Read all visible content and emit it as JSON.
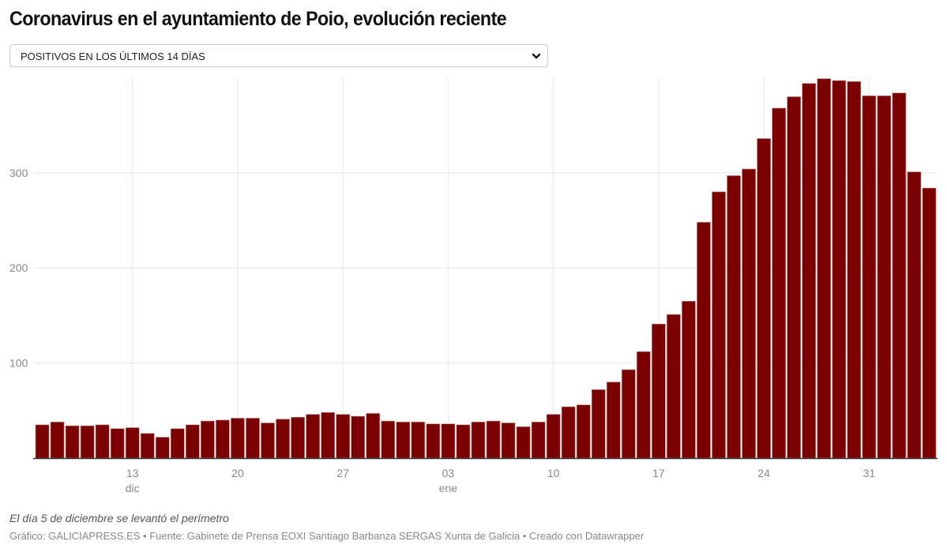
{
  "title": "Coronavirus en el ayuntamiento de Poio, evolución reciente",
  "dropdown": {
    "selected": "POSITIVOS EN LOS ÚLTIMOS 14 DÍAS",
    "icon": "chevron-down-icon"
  },
  "notes": "El día 5 de diciembre se levantó el perímetro",
  "source": "Gráfico: GALICIAPRESS.ES • Fuente: Gabinete de Prensa EOXI Santiago Barbanza SERGAS Xunta de Galicia • Creado con Datawrapper",
  "colors": {
    "bar": "#7b0000",
    "grid": "#e6e6e6",
    "axis": "#333333",
    "tick_text": "#888888"
  },
  "chart_data": {
    "type": "bar",
    "title": "Coronavirus en el ayuntamiento de Poio, evolución reciente",
    "series_name": "Positivos en los últimos 14 días",
    "x_start": "2020-12-07",
    "x_end": "2021-02-04",
    "xlabel": "",
    "ylabel": "",
    "ylim": [
      0,
      400
    ],
    "yticks": [
      100,
      200,
      300
    ],
    "grid": true,
    "xticks": [
      {
        "index": 6,
        "label": "13",
        "sublabel": "dic"
      },
      {
        "index": 13,
        "label": "20",
        "sublabel": ""
      },
      {
        "index": 20,
        "label": "27",
        "sublabel": ""
      },
      {
        "index": 27,
        "label": "03",
        "sublabel": "ene"
      },
      {
        "index": 34,
        "label": "10",
        "sublabel": ""
      },
      {
        "index": 41,
        "label": "17",
        "sublabel": ""
      },
      {
        "index": 48,
        "label": "24",
        "sublabel": ""
      },
      {
        "index": 55,
        "label": "31",
        "sublabel": ""
      }
    ],
    "values": [
      35,
      38,
      34,
      34,
      35,
      31,
      32,
      26,
      22,
      31,
      35,
      39,
      40,
      42,
      42,
      37,
      41,
      43,
      46,
      48,
      46,
      44,
      47,
      39,
      38,
      38,
      36,
      36,
      35,
      38,
      39,
      37,
      33,
      38,
      46,
      54,
      56,
      72,
      80,
      93,
      112,
      141,
      151,
      165,
      248,
      280,
      297,
      304,
      336,
      368,
      380,
      394,
      399,
      397,
      396,
      381,
      381,
      384,
      301,
      284
    ]
  }
}
